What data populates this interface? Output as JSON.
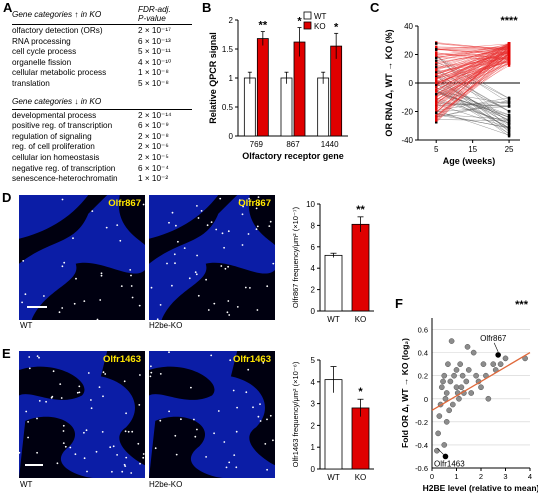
{
  "panel_labels": {
    "a": "A",
    "b": "B",
    "c": "C",
    "d": "D",
    "e": "E",
    "f": "F"
  },
  "panel_a": {
    "up": {
      "header_left": "Gene categories ↑ in KO",
      "header_right_1": "FDR-adj.",
      "header_right_2": "P-value",
      "rows": [
        {
          "cat": "olfactory detection (ORs)",
          "p": "2 × 10⁻¹⁷"
        },
        {
          "cat": "RNA processing",
          "p": "6 × 10⁻¹³"
        },
        {
          "cat": "cell cycle process",
          "p": "5 × 10⁻¹¹"
        },
        {
          "cat": "organelle fission",
          "p": "4 × 10⁻¹⁰"
        },
        {
          "cat": "cellular metabolic process",
          "p": "1 × 10⁻⁸"
        },
        {
          "cat": "translation",
          "p": "5 × 10⁻⁸"
        }
      ]
    },
    "down": {
      "header_left": "Gene categories ↓ in KO",
      "rows": [
        {
          "cat": "developmental process",
          "p": "2 × 10⁻¹⁴"
        },
        {
          "cat": "positive reg. of transcription",
          "p": "6 × 10⁻⁹"
        },
        {
          "cat": "regulation of signaling",
          "p": "2 × 10⁻⁸"
        },
        {
          "cat": "reg. of cell proliferation",
          "p": "2 × 10⁻⁶"
        },
        {
          "cat": "cellular ion homeostasis",
          "p": "2 × 10⁻⁵"
        },
        {
          "cat": "negative reg. of transcription",
          "p": "6 × 10⁻⁴"
        },
        {
          "cat": "senescence-heterochromatin",
          "p": "1 × 10⁻²"
        }
      ]
    }
  },
  "panel_b": {
    "ylabel": "Relative QPCR signal",
    "xlabel": "Olfactory receptor gene",
    "legend": {
      "wt": "WT",
      "ko": "KO"
    },
    "colors": {
      "wt": "#ffffff",
      "ko": "#e00000"
    }
  },
  "panel_c": {
    "ylabel": "OR RNA Δ, WT → KO (%)",
    "xlabel": "Age (weeks)",
    "stars": "****",
    "colors": {
      "up": "#e83030",
      "down": "#555555"
    }
  },
  "panel_d": {
    "gene": "Olfr867",
    "cap_left": "WT",
    "cap_right": "H2be-KO",
    "ylabel": "Olfr867 frequency/μm² (×10⁻⁷)"
  },
  "panel_e": {
    "gene": "Olfr1463",
    "cap_left": "WT",
    "cap_right": "H2be-KO",
    "ylabel": "Olfr1463 frequency/μm² (×10⁻⁶)"
  },
  "panel_f": {
    "ylabel": "Fold OR Δ, WT → KO (log₂)",
    "xlabel": "H2BE level (relative to mean)",
    "stars": "***",
    "ann_top": "Olfr867",
    "ann_bottom": "Olfr1463",
    "colors": {
      "points": "#8c8c8c",
      "fit": "#e06a3c",
      "highlight": "#000000"
    }
  },
  "chart_data": [
    {
      "panel": "B",
      "type": "bar",
      "categories": [
        "769",
        "867",
        "1440"
      ],
      "series": [
        {
          "name": "WT",
          "values": [
            1.0,
            1.0,
            1.0
          ],
          "errors": [
            0.1,
            0.1,
            0.1
          ]
        },
        {
          "name": "KO",
          "values": [
            1.68,
            1.62,
            1.55
          ],
          "errors": [
            0.12,
            0.25,
            0.22
          ]
        }
      ],
      "significance": [
        "**",
        "*",
        "*"
      ],
      "title": "",
      "xlabel": "Olfactory receptor gene",
      "ylabel": "Relative QPCR signal",
      "ylim": [
        0,
        2
      ],
      "yticks": [
        0,
        0.5,
        1,
        1.5,
        2
      ],
      "legend": "top-right"
    },
    {
      "panel": "C",
      "type": "line",
      "x": [
        5,
        25
      ],
      "xticks": [
        5,
        15,
        25
      ],
      "ylim": [
        -40,
        40
      ],
      "yticks": [
        -40,
        -20,
        0,
        20,
        40
      ],
      "n_increasing_lines": 120,
      "n_decreasing_lines": 42,
      "increasing_start_range": [
        -28,
        30
      ],
      "increasing_end_range": [
        12,
        28
      ],
      "decreasing_start_range": [
        -28,
        22
      ],
      "decreasing_end_range": [
        -38,
        -10
      ],
      "significance": "****",
      "title": "",
      "xlabel": "Age (weeks)",
      "ylabel": "OR RNA Δ, WT → KO (%)"
    },
    {
      "panel": "D",
      "type": "bar",
      "categories": [
        "WT",
        "KO"
      ],
      "values": [
        5.2,
        8.1
      ],
      "errors": [
        0.2,
        0.7
      ],
      "ylim": [
        0,
        10
      ],
      "yticks": [
        0,
        2,
        4,
        6,
        8,
        10
      ],
      "significance": "**",
      "ylabel": "Olfr867 frequency/μm² (×10⁻⁷)"
    },
    {
      "panel": "E",
      "type": "bar",
      "categories": [
        "WT",
        "KO"
      ],
      "values": [
        4.1,
        2.8
      ],
      "errors": [
        0.6,
        0.4
      ],
      "ylim": [
        0,
        5
      ],
      "yticks": [
        0,
        1,
        2,
        3,
        4,
        5
      ],
      "significance": "*",
      "ylabel": "Olfr1463 frequency/μm² (×10⁻⁶)"
    },
    {
      "panel": "F",
      "type": "scatter",
      "x": [
        0.2,
        0.25,
        0.3,
        0.35,
        0.4,
        0.45,
        0.5,
        0.5,
        0.55,
        0.6,
        0.6,
        0.65,
        0.7,
        0.75,
        0.8,
        0.85,
        0.9,
        1.0,
        1.0,
        1.05,
        1.1,
        1.15,
        1.2,
        1.25,
        1.3,
        1.4,
        1.45,
        1.5,
        1.6,
        1.7,
        1.8,
        1.9,
        2.0,
        2.1,
        2.2,
        2.3,
        2.5,
        2.6,
        2.8,
        3.0,
        3.8
      ],
      "y": [
        -0.45,
        -0.3,
        -0.15,
        -0.05,
        0.1,
        0.15,
        -0.4,
        0.2,
        0.0,
        -0.2,
        0.05,
        0.3,
        -0.1,
        0.15,
        0.5,
        -0.05,
        0.2,
        0.1,
        0.25,
        0.05,
        0.0,
        0.3,
        0.1,
        0.2,
        0.05,
        0.15,
        0.45,
        0.25,
        0.05,
        0.4,
        0.2,
        0.15,
        0.1,
        0.3,
        0.2,
        0.0,
        0.3,
        0.25,
        0.3,
        0.35,
        0.35
      ],
      "highlight": [
        {
          "label": "Olfr867",
          "x": 2.7,
          "y": 0.38
        },
        {
          "label": "Olfr1463",
          "x": 0.55,
          "y": -0.5
        }
      ],
      "fit": {
        "x": [
          0,
          4
        ],
        "y": [
          -0.1,
          0.4
        ]
      },
      "xlim": [
        0,
        4
      ],
      "ylim": [
        -0.6,
        0.7
      ],
      "xticks": [
        0,
        1,
        2,
        3,
        4
      ],
      "yticks": [
        -0.6,
        -0.4,
        -0.2,
        0,
        0.2,
        0.4,
        0.6
      ],
      "significance": "***",
      "title": "",
      "xlabel": "H2BE level (relative to mean)",
      "ylabel": "Fold OR Δ, WT → KO (log₂)"
    }
  ]
}
